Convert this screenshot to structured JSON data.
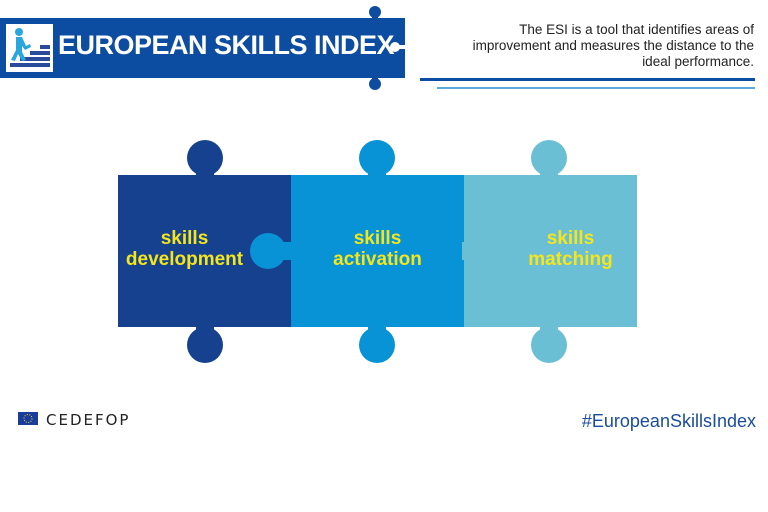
{
  "header": {
    "title": "EUROPEAN SKILLS INDEX",
    "description": "The ESI is a tool that identifies areas of improvement and measures the distance to the ideal performance.",
    "icon": "person-climbing-stairs-icon"
  },
  "pillars": [
    {
      "line1": "skills",
      "line2": "development",
      "color": "#15418f"
    },
    {
      "line1": "skills",
      "line2": "activation",
      "color": "#0793d6"
    },
    {
      "line1": "skills",
      "line2": "matching",
      "color": "#6bbfd4"
    }
  ],
  "colors": {
    "header_blue": "#0d4da1",
    "label_yellow": "#f4e61c",
    "line_light": "#5aa9dc"
  },
  "footer": {
    "logo": "CEDEFOP",
    "hashtag": "#EuropeanSkillsIndex"
  }
}
